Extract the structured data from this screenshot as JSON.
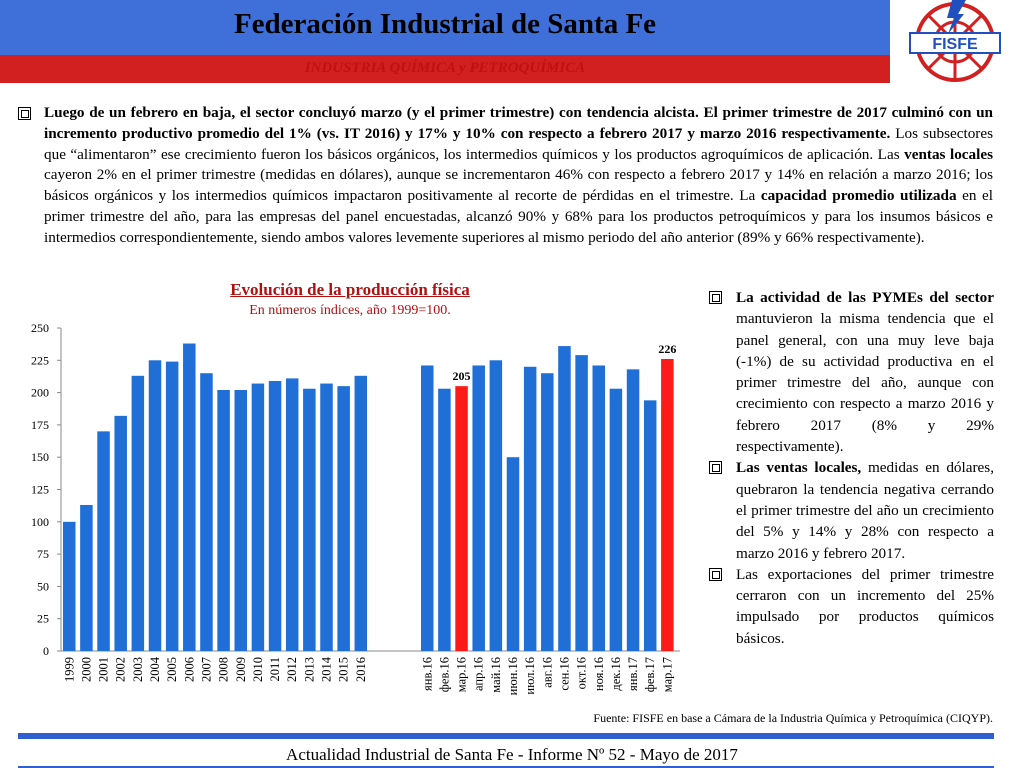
{
  "header": {
    "title": "Federación Industrial de Santa Fe",
    "subtitle": "INDUSTRIA QUÍMICA y PETROQUÍMICA"
  },
  "logo": {
    "text": "FISFE",
    "colors": {
      "red": "#d21f1f",
      "blue": "#2050c0"
    }
  },
  "intro": {
    "bold_1": "Luego de un febrero en baja, el sector concluyó marzo (y el primer trimestre) con tendencia alcista. El primer trimestre de 2017 culminó con un incremento productivo promedio del 1% (vs. IT 2016) y 17% y 10% con respecto a febrero 2017 y marzo 2016 respectivamente.",
    "text_1": " Los subsectores que “alimentaron” ese crecimiento fueron los básicos orgánicos, los intermedios químicos y los productos agroquímicos de aplicación. Las ",
    "bold_2": "ventas locales",
    "text_2": " cayeron 2% en el primer trimestre (medidas en dólares), aunque se incrementaron 46% con respecto a febrero 2017 y 14% en relación a marzo 2016; los básicos orgánicos y los intermedios químicos impactaron positivamente al recorte de pérdidas en el trimestre. La ",
    "bold_3": "capacidad promedio utilizada",
    "text_3": " en el primer trimestre del año, para las empresas del panel encuestadas, alcanzó 90% y 68% para los productos petroquímicos y para los insumos básicos e intermedios correspondientemente, siendo ambos valores levemente superiores al mismo periodo del año anterior (89% y 66% respectivamente)."
  },
  "chart_data": {
    "type": "bar",
    "title": "Evolución de la producción física",
    "subtitle": "En números índices, año 1999=100.",
    "ylim": [
      0,
      250
    ],
    "yticks": [
      0,
      25,
      50,
      75,
      100,
      125,
      150,
      175,
      200,
      225,
      250
    ],
    "grid": false,
    "bar_color": "#1f6fd6",
    "highlight_color": "#ff1a1a",
    "groups": [
      {
        "categories": [
          "1999",
          "2000",
          "2001",
          "2002",
          "2003",
          "2004",
          "2005",
          "2006",
          "2007",
          "2008",
          "2009",
          "2010",
          "2011",
          "2012",
          "2013",
          "2014",
          "2015",
          "2016"
        ],
        "values": [
          100,
          113,
          170,
          182,
          213,
          225,
          224,
          238,
          215,
          202,
          202,
          207,
          209,
          211,
          203,
          207,
          205,
          213
        ]
      },
      {
        "categories": [
          "янв.16",
          "фев.16",
          "мар.16",
          "апр.16",
          "май.16",
          "июн.16",
          "июл.16",
          "авг.16",
          "сен.16",
          "окт.16",
          "ноя.16",
          "дек.16",
          "янв.17",
          "фев.17",
          "мар.17"
        ],
        "values": [
          221,
          203,
          205,
          221,
          225,
          150,
          220,
          215,
          236,
          229,
          221,
          203,
          218,
          194,
          226
        ],
        "highlight": [
          "мар.16",
          "мар.17"
        ],
        "data_labels": {
          "мар.16": "205",
          "мар.17": "226"
        }
      }
    ]
  },
  "side": {
    "item1_bold": "La actividad de las PYMEs del sector",
    "item1_text": " mantuvieron la misma tendencia que el panel general, con una muy leve baja (-1%) de su actividad productiva en el primer trimestre del año, aunque con crecimiento con respecto a marzo 2016 y febrero 2017 (8% y 29% respectivamente).",
    "item2_bold": "Las ventas locales,",
    "item2_text": " medidas en dólares, quebraron la tendencia negativa cerrando el primer trimestre del año un crecimiento del 5% y 14% y 28% con respecto a marzo 2016 y febrero 2017.",
    "item3_text": "Las exportaciones del primer trimestre cerraron con un incremento del 25% impulsado por productos químicos básicos."
  },
  "source": {
    "prefix": "Fuente: FISFE en base a ",
    "org": "Cámara de la Industria Química y Petroquímica (CIQYP)."
  },
  "footer": {
    "text": "Actualidad Industrial de Santa Fe - Informe Nº 52 - Mayo de 2017"
  }
}
